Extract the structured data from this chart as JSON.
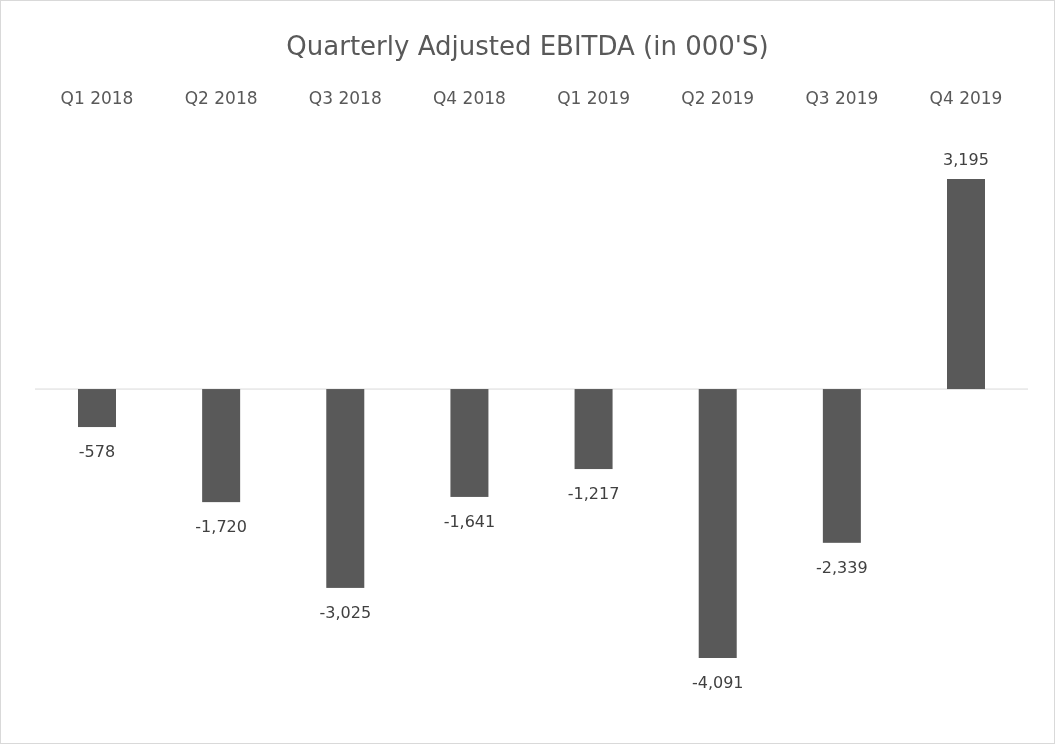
{
  "chart_data": {
    "type": "bar",
    "title": "Quarterly Adjusted EBITDA (in 000'S)",
    "categories": [
      "Q1 2018",
      "Q2 2018",
      "Q3 2018",
      "Q4 2018",
      "Q1 2019",
      "Q2 2019",
      "Q3 2019",
      "Q4 2019"
    ],
    "values": [
      -578,
      -1720,
      -3025,
      -1641,
      -1217,
      -4091,
      -2339,
      3195
    ],
    "value_labels": [
      "-578",
      "-1,720",
      "-3,025",
      "-1,641",
      "-1,217",
      "-4,091",
      "-2,339",
      "3,195"
    ],
    "color": "#595959"
  }
}
